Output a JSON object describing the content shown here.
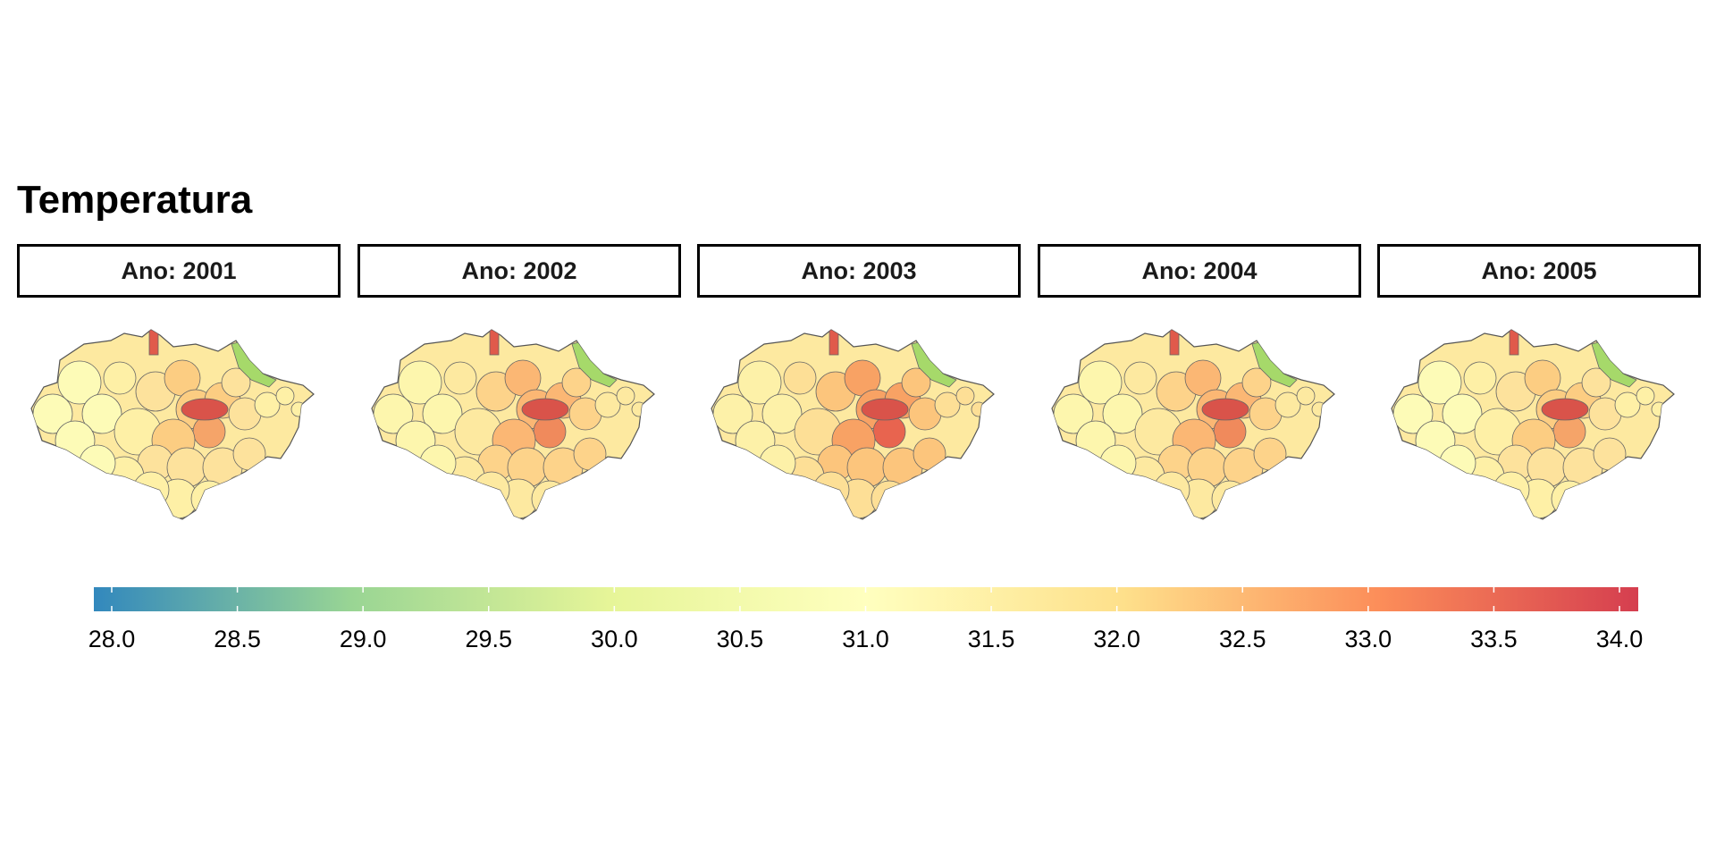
{
  "title": "Temperatura",
  "panels": [
    {
      "label": "Ano: 2001"
    },
    {
      "label": "Ano: 2002"
    },
    {
      "label": "Ano: 2003"
    },
    {
      "label": "Ano: 2004"
    },
    {
      "label": "Ano: 2005"
    }
  ],
  "legend": {
    "min": 28.0,
    "max": 34.0,
    "ticks": [
      "28.0",
      "28.5",
      "29.0",
      "29.5",
      "30.0",
      "30.5",
      "31.0",
      "31.5",
      "32.0",
      "32.5",
      "33.0",
      "33.5",
      "34.0"
    ],
    "colors": [
      "#3288bd",
      "#99d594",
      "#e6f598",
      "#ffffbf",
      "#fee08b",
      "#fc8d59",
      "#d53e4f"
    ]
  }
}
